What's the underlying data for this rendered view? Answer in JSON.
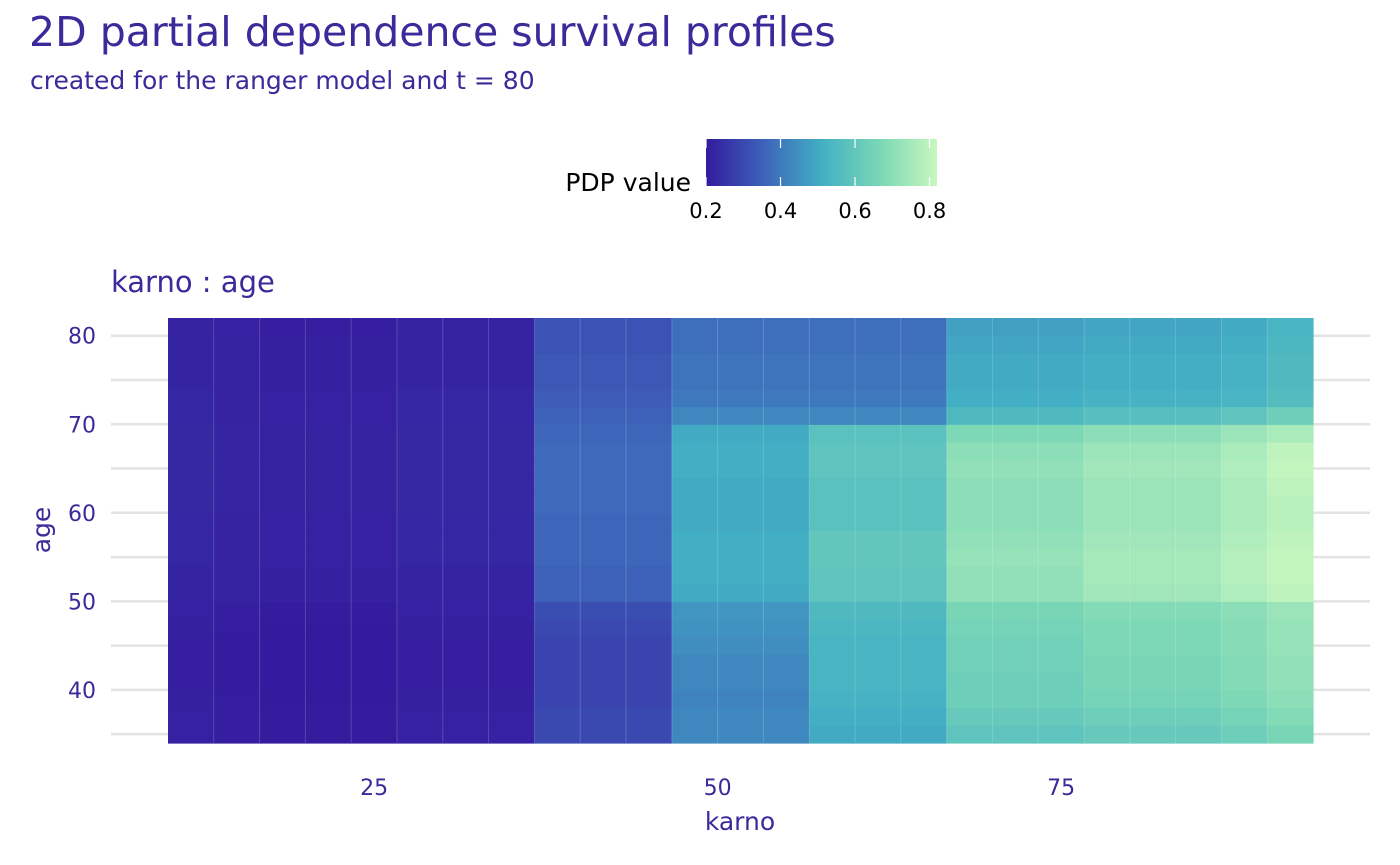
{
  "chart_data": {
    "type": "heatmap",
    "title": "2D partial dependence survival profiles",
    "subtitle": "created for the ranger model and t = 80",
    "facet_label": "karno : age",
    "xlabel": "karno",
    "ylabel": "age",
    "legend": {
      "title": "PDP value",
      "position": "top",
      "range": [
        0.2,
        0.82
      ],
      "ticks": [
        "0.2",
        "0.4",
        "0.6",
        "0.8"
      ],
      "tick_values": [
        0.2,
        0.4,
        0.6,
        0.8
      ],
      "colors": [
        "#341A9E",
        "#3D63BA",
        "#42AFC4",
        "#7AD7B6",
        "#C8F7BF"
      ]
    },
    "x_ticks": [
      "25",
      "50",
      "75"
    ],
    "x_tick_values": [
      25,
      50,
      75
    ],
    "y_ticks": [
      "40",
      "50",
      "60",
      "70",
      "80"
    ],
    "y_tick_values": [
      40,
      50,
      60,
      70,
      80
    ],
    "xlim": [
      8.2,
      92.8
    ],
    "ylim": [
      33,
      83
    ],
    "x_breaks": [
      10,
      13.33,
      16.67,
      20,
      23.33,
      26.67,
      30,
      33.33,
      36.67,
      40,
      43.33,
      46.67,
      50,
      53.33,
      56.67,
      60,
      63.33,
      66.67,
      70,
      73.33,
      76.67,
      80,
      83.33,
      86.67,
      90,
      93.33
    ],
    "y_breaks": [
      34,
      36,
      38,
      40,
      42,
      44,
      46,
      48,
      50,
      52,
      54,
      56,
      58,
      60,
      62,
      64,
      66,
      68,
      70,
      72,
      74,
      76,
      78,
      80,
      82
    ],
    "x_columns": [
      11.7,
      15,
      18.3,
      21.7,
      25,
      28.3,
      31.7,
      35,
      38.3,
      41.7,
      45,
      48.3,
      51.7,
      55,
      58.3,
      61.7,
      65,
      68.3,
      71.7,
      75,
      78.3,
      81.7,
      85,
      88.3,
      91.7
    ],
    "y_rows": [
      35,
      37,
      39,
      41,
      43,
      45,
      47,
      49,
      51,
      53,
      55,
      57,
      59,
      61,
      63,
      65,
      67,
      69,
      71,
      73,
      75,
      77,
      79,
      81
    ],
    "values": [
      [
        0.215,
        0.21,
        0.205,
        0.205,
        0.205,
        0.215,
        0.215,
        0.215,
        0.3,
        0.3,
        0.3,
        0.43,
        0.43,
        0.43,
        0.5,
        0.5,
        0.5,
        0.59,
        0.59,
        0.59,
        0.61,
        0.61,
        0.61,
        0.63,
        0.66
      ],
      [
        0.215,
        0.21,
        0.205,
        0.205,
        0.205,
        0.215,
        0.215,
        0.215,
        0.3,
        0.3,
        0.3,
        0.43,
        0.43,
        0.43,
        0.51,
        0.51,
        0.51,
        0.61,
        0.61,
        0.61,
        0.63,
        0.63,
        0.63,
        0.65,
        0.68
      ],
      [
        0.212,
        0.207,
        0.202,
        0.202,
        0.202,
        0.212,
        0.212,
        0.212,
        0.29,
        0.29,
        0.29,
        0.42,
        0.42,
        0.42,
        0.52,
        0.52,
        0.52,
        0.63,
        0.63,
        0.63,
        0.65,
        0.65,
        0.65,
        0.67,
        0.7
      ],
      [
        0.21,
        0.205,
        0.2,
        0.2,
        0.2,
        0.21,
        0.21,
        0.21,
        0.29,
        0.29,
        0.29,
        0.43,
        0.43,
        0.43,
        0.53,
        0.53,
        0.53,
        0.63,
        0.63,
        0.63,
        0.66,
        0.66,
        0.66,
        0.68,
        0.71
      ],
      [
        0.21,
        0.205,
        0.2,
        0.2,
        0.2,
        0.21,
        0.21,
        0.21,
        0.29,
        0.29,
        0.29,
        0.43,
        0.43,
        0.43,
        0.53,
        0.53,
        0.53,
        0.64,
        0.64,
        0.64,
        0.66,
        0.66,
        0.66,
        0.68,
        0.71
      ],
      [
        0.21,
        0.205,
        0.2,
        0.2,
        0.2,
        0.21,
        0.21,
        0.21,
        0.29,
        0.29,
        0.29,
        0.44,
        0.44,
        0.44,
        0.53,
        0.53,
        0.53,
        0.64,
        0.64,
        0.64,
        0.67,
        0.67,
        0.67,
        0.69,
        0.72
      ],
      [
        0.212,
        0.207,
        0.202,
        0.202,
        0.202,
        0.212,
        0.212,
        0.212,
        0.3,
        0.3,
        0.3,
        0.45,
        0.45,
        0.45,
        0.54,
        0.54,
        0.54,
        0.65,
        0.65,
        0.65,
        0.67,
        0.67,
        0.67,
        0.69,
        0.72
      ],
      [
        0.215,
        0.21,
        0.205,
        0.205,
        0.205,
        0.215,
        0.215,
        0.215,
        0.31,
        0.31,
        0.31,
        0.46,
        0.46,
        0.46,
        0.55,
        0.55,
        0.55,
        0.66,
        0.66,
        0.66,
        0.68,
        0.68,
        0.68,
        0.7,
        0.73
      ],
      [
        0.222,
        0.217,
        0.212,
        0.212,
        0.212,
        0.222,
        0.222,
        0.222,
        0.35,
        0.35,
        0.35,
        0.5,
        0.5,
        0.5,
        0.59,
        0.59,
        0.59,
        0.71,
        0.71,
        0.71,
        0.74,
        0.74,
        0.74,
        0.77,
        0.8
      ],
      [
        0.222,
        0.217,
        0.212,
        0.212,
        0.212,
        0.222,
        0.222,
        0.222,
        0.35,
        0.35,
        0.35,
        0.51,
        0.51,
        0.51,
        0.59,
        0.59,
        0.59,
        0.71,
        0.71,
        0.71,
        0.75,
        0.75,
        0.75,
        0.78,
        0.81
      ],
      [
        0.225,
        0.22,
        0.215,
        0.215,
        0.215,
        0.225,
        0.225,
        0.225,
        0.36,
        0.36,
        0.36,
        0.51,
        0.51,
        0.51,
        0.6,
        0.6,
        0.6,
        0.72,
        0.72,
        0.72,
        0.75,
        0.75,
        0.75,
        0.78,
        0.81
      ],
      [
        0.225,
        0.22,
        0.215,
        0.215,
        0.215,
        0.225,
        0.225,
        0.225,
        0.36,
        0.36,
        0.36,
        0.51,
        0.51,
        0.51,
        0.6,
        0.6,
        0.6,
        0.71,
        0.71,
        0.71,
        0.74,
        0.74,
        0.74,
        0.77,
        0.8
      ],
      [
        0.225,
        0.22,
        0.215,
        0.215,
        0.215,
        0.225,
        0.225,
        0.225,
        0.36,
        0.36,
        0.36,
        0.5,
        0.5,
        0.5,
        0.58,
        0.58,
        0.58,
        0.7,
        0.7,
        0.7,
        0.73,
        0.73,
        0.73,
        0.76,
        0.79
      ],
      [
        0.228,
        0.223,
        0.218,
        0.218,
        0.218,
        0.228,
        0.228,
        0.228,
        0.37,
        0.37,
        0.37,
        0.5,
        0.5,
        0.5,
        0.58,
        0.58,
        0.58,
        0.7,
        0.7,
        0.7,
        0.73,
        0.73,
        0.73,
        0.76,
        0.79
      ],
      [
        0.228,
        0.223,
        0.218,
        0.218,
        0.218,
        0.228,
        0.228,
        0.228,
        0.37,
        0.37,
        0.37,
        0.5,
        0.5,
        0.5,
        0.58,
        0.58,
        0.58,
        0.7,
        0.7,
        0.7,
        0.73,
        0.73,
        0.73,
        0.76,
        0.8
      ],
      [
        0.228,
        0.223,
        0.218,
        0.218,
        0.218,
        0.228,
        0.228,
        0.228,
        0.37,
        0.37,
        0.37,
        0.51,
        0.51,
        0.51,
        0.59,
        0.59,
        0.59,
        0.71,
        0.71,
        0.71,
        0.74,
        0.74,
        0.74,
        0.77,
        0.81
      ],
      [
        0.228,
        0.223,
        0.218,
        0.218,
        0.218,
        0.228,
        0.228,
        0.228,
        0.37,
        0.37,
        0.37,
        0.51,
        0.51,
        0.51,
        0.59,
        0.59,
        0.59,
        0.7,
        0.7,
        0.7,
        0.73,
        0.73,
        0.73,
        0.76,
        0.8
      ],
      [
        0.228,
        0.223,
        0.218,
        0.218,
        0.218,
        0.228,
        0.228,
        0.228,
        0.36,
        0.36,
        0.36,
        0.5,
        0.5,
        0.5,
        0.58,
        0.58,
        0.58,
        0.67,
        0.67,
        0.67,
        0.7,
        0.7,
        0.7,
        0.73,
        0.76
      ],
      [
        0.225,
        0.22,
        0.215,
        0.215,
        0.215,
        0.225,
        0.225,
        0.225,
        0.35,
        0.35,
        0.35,
        0.43,
        0.43,
        0.43,
        0.43,
        0.43,
        0.43,
        0.55,
        0.55,
        0.55,
        0.57,
        0.57,
        0.57,
        0.59,
        0.63
      ],
      [
        0.225,
        0.22,
        0.215,
        0.215,
        0.215,
        0.225,
        0.225,
        0.225,
        0.34,
        0.34,
        0.34,
        0.4,
        0.4,
        0.4,
        0.4,
        0.4,
        0.4,
        0.51,
        0.51,
        0.51,
        0.52,
        0.52,
        0.52,
        0.53,
        0.56
      ],
      [
        0.222,
        0.217,
        0.212,
        0.212,
        0.212,
        0.222,
        0.222,
        0.222,
        0.33,
        0.33,
        0.33,
        0.39,
        0.39,
        0.39,
        0.39,
        0.39,
        0.39,
        0.5,
        0.5,
        0.5,
        0.51,
        0.51,
        0.51,
        0.52,
        0.55
      ],
      [
        0.222,
        0.217,
        0.212,
        0.212,
        0.212,
        0.222,
        0.222,
        0.222,
        0.33,
        0.33,
        0.33,
        0.39,
        0.39,
        0.39,
        0.39,
        0.39,
        0.39,
        0.5,
        0.5,
        0.5,
        0.51,
        0.51,
        0.51,
        0.52,
        0.55
      ],
      [
        0.222,
        0.217,
        0.212,
        0.212,
        0.212,
        0.222,
        0.222,
        0.222,
        0.32,
        0.32,
        0.32,
        0.38,
        0.38,
        0.38,
        0.38,
        0.38,
        0.38,
        0.49,
        0.49,
        0.49,
        0.5,
        0.5,
        0.5,
        0.51,
        0.54
      ],
      [
        0.22,
        0.215,
        0.21,
        0.21,
        0.21,
        0.22,
        0.22,
        0.22,
        0.32,
        0.32,
        0.32,
        0.38,
        0.38,
        0.38,
        0.38,
        0.38,
        0.38,
        0.48,
        0.48,
        0.48,
        0.49,
        0.49,
        0.49,
        0.5,
        0.53
      ]
    ]
  }
}
